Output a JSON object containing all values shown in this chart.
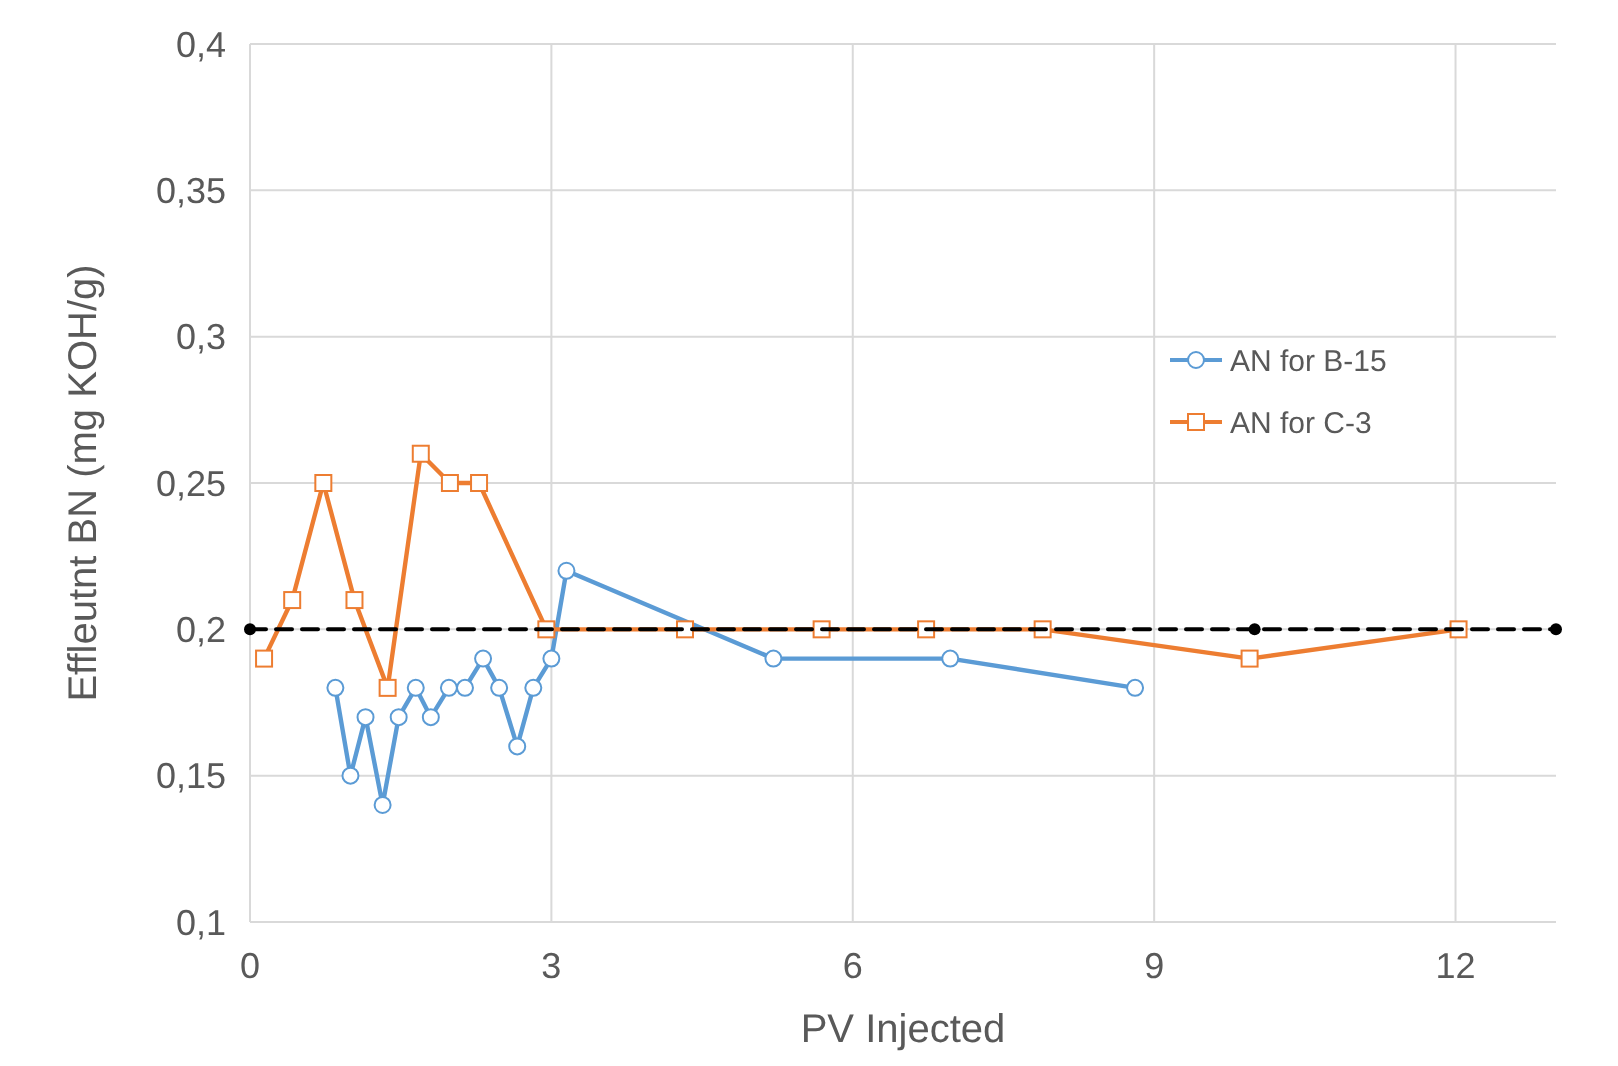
{
  "chart_data": {
    "type": "line",
    "xlabel": "PV Injected",
    "ylabel": "Effleutnt BN (mg KOH/g)",
    "xlim": [
      0,
      13
    ],
    "xticks": [
      0,
      3,
      6,
      9,
      12
    ],
    "ylim": [
      0.1,
      0.4
    ],
    "yticks": [
      {
        "value": 0.1,
        "label": "0,1"
      },
      {
        "value": 0.15,
        "label": "0,15"
      },
      {
        "value": 0.2,
        "label": "0,2"
      },
      {
        "value": 0.25,
        "label": "0,25"
      },
      {
        "value": 0.3,
        "label": "0,3"
      },
      {
        "value": 0.35,
        "label": "0,35"
      },
      {
        "value": 0.4,
        "label": "0,4"
      }
    ],
    "grid": true,
    "legend": "right",
    "series": [
      {
        "name": "AN for B-15",
        "color": "#5b9bd5",
        "marker": "circle",
        "x": [
          0.85,
          1.0,
          1.15,
          1.32,
          1.48,
          1.65,
          1.8,
          1.98,
          2.14,
          2.32,
          2.48,
          2.66,
          2.82,
          3.0,
          3.15,
          5.21,
          6.97,
          8.81
        ],
        "values": [
          0.18,
          0.15,
          0.17,
          0.14,
          0.17,
          0.18,
          0.17,
          0.18,
          0.18,
          0.19,
          0.18,
          0.16,
          0.18,
          0.19,
          0.22,
          0.19,
          0.19,
          0.18
        ]
      },
      {
        "name": "AN for C-3",
        "color": "#ed7d31",
        "marker": "square",
        "x": [
          0.14,
          0.42,
          0.73,
          1.04,
          1.37,
          1.7,
          1.99,
          2.28,
          2.95,
          4.33,
          5.69,
          6.73,
          7.89,
          9.95,
          12.03
        ],
        "values": [
          0.19,
          0.21,
          0.25,
          0.21,
          0.18,
          0.26,
          0.25,
          0.25,
          0.2,
          0.2,
          0.2,
          0.2,
          0.2,
          0.19,
          0.2
        ]
      },
      {
        "color": "#000000",
        "marker": "circle",
        "line_style": "dashed",
        "x": [
          0,
          10,
          13
        ],
        "values": [
          0.2,
          0.2,
          0.2
        ]
      }
    ]
  }
}
